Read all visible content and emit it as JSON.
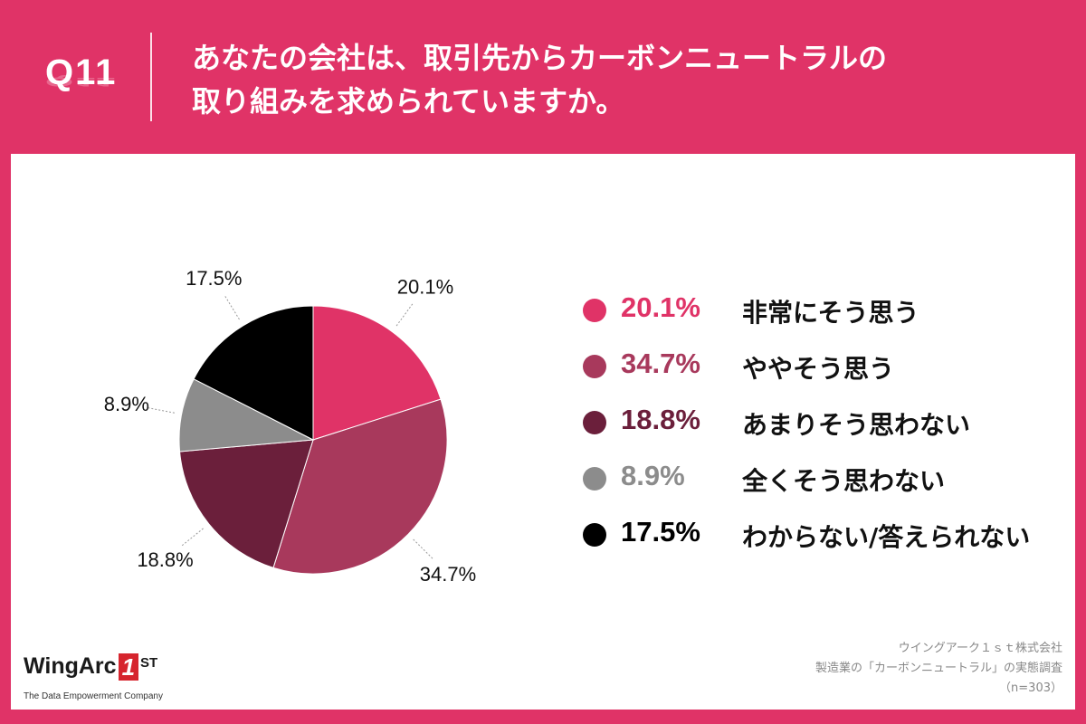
{
  "header": {
    "qnum": "Q11",
    "title_line1": "あなたの会社は、取引先からカーボンニュートラルの",
    "title_line2": "取り組みを求められていますか。"
  },
  "colors": {
    "header_bg": "#e03367",
    "panel_bg": "#ffffff"
  },
  "chart_data": {
    "type": "pie",
    "title": "あなたの会社は、取引先からカーボンニュートラルの取り組みを求められていますか。",
    "start_angle_deg": 0,
    "direction": "clockwise",
    "slices": [
      {
        "label": "非常にそう思う",
        "value": 20.1,
        "display": "20.1%",
        "color": "#e03367"
      },
      {
        "label": "ややそう思う",
        "value": 34.7,
        "display": "34.7%",
        "color": "#a8395c"
      },
      {
        "label": "あまりそう思わない",
        "value": 18.8,
        "display": "18.8%",
        "color": "#6b1f3b"
      },
      {
        "label": "全くそう思わない",
        "value": 8.9,
        "display": "8.9%",
        "color": "#8c8c8c"
      },
      {
        "label": "わからない/答えられない",
        "value": 17.5,
        "display": "17.5%",
        "color": "#000000"
      }
    ]
  },
  "logo": {
    "name": "WingArc",
    "one": "1",
    "st": "ST",
    "tagline": "The Data Empowerment Company"
  },
  "source": {
    "line1": "ウイングアーク１ｓｔ株式会社",
    "line2": "製造業の「カーボンニュートラル」の実態調査",
    "line3": "（n=303）"
  }
}
